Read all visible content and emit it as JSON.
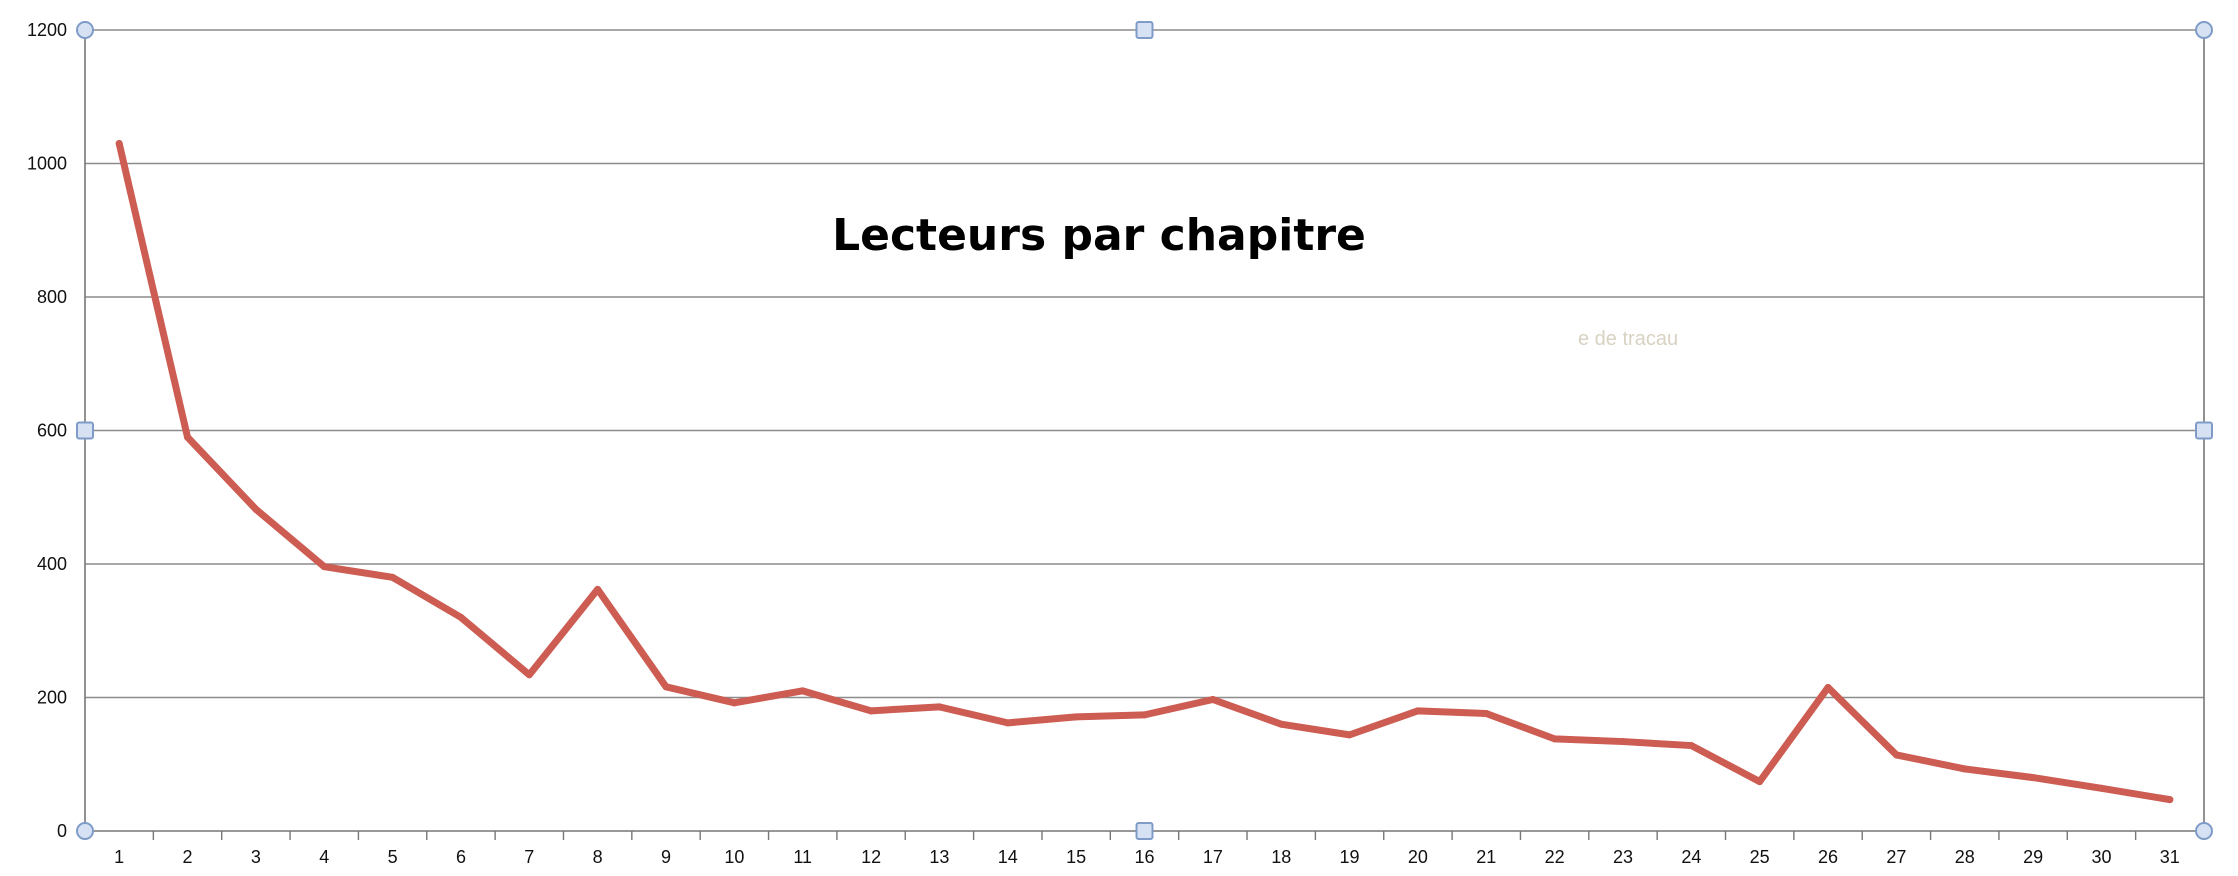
{
  "chart_data": {
    "type": "line",
    "title": "Lecteurs par chapitre",
    "xlabel": "",
    "ylabel": "",
    "categories": [
      "1",
      "2",
      "3",
      "4",
      "5",
      "6",
      "7",
      "8",
      "9",
      "10",
      "11",
      "12",
      "13",
      "14",
      "15",
      "16",
      "17",
      "18",
      "19",
      "20",
      "21",
      "22",
      "23",
      "24",
      "25",
      "26",
      "27",
      "28",
      "29",
      "30",
      "31"
    ],
    "series": [
      {
        "values": [
          1030,
          590,
          482,
          396,
          380,
          320,
          234,
          362,
          216,
          192,
          210,
          180,
          186,
          162,
          171,
          174,
          197,
          160,
          144,
          180,
          176,
          138,
          134,
          128,
          74,
          215,
          114,
          93,
          80,
          64,
          47
        ],
        "color": "#cd5c52"
      }
    ],
    "ylim": [
      0,
      1200
    ],
    "yticks": [
      0,
      200,
      400,
      600,
      800,
      1000,
      1200
    ],
    "grid": true,
    "legend": "none",
    "colors": {
      "line": "#cd5c52",
      "grid": "#8c8c8c",
      "handle_fill": "#d6e2f4",
      "handle_stroke": "#7f9cc8"
    }
  },
  "overlay": {
    "faint_text": "e de tracau"
  }
}
